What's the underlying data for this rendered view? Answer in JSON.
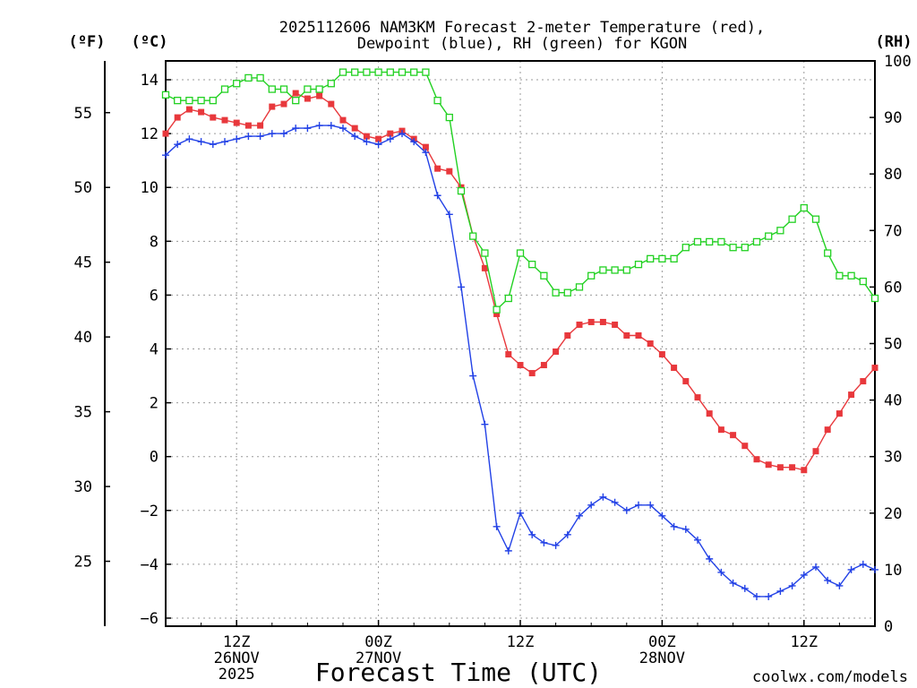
{
  "colors": {
    "temperature": "#e8383c",
    "dewpoint": "#2241e6",
    "rh": "#22d122",
    "credit": "#e8383c",
    "grid": "#9a9a9a"
  },
  "chart_data": {
    "type": "line",
    "title_line1": "2025112606 NAM3KM Forecast 2-meter Temperature (red),",
    "title_line2": "Dewpoint (blue), RH (green) for KGON",
    "xlabel": "Forecast Time (UTC)",
    "credit": "coolwx.com/models",
    "unit_f": "(ºF)",
    "unit_c": "(ºC)",
    "unit_rh": "(RH)",
    "x_hours_range": [
      0,
      60
    ],
    "ylim_c": [
      -6.3,
      14.7
    ],
    "ylim_rh": [
      0,
      100
    ],
    "x_ticks": [
      {
        "hour": 6,
        "lines": [
          "12Z",
          "26NOV",
          "2025"
        ]
      },
      {
        "hour": 18,
        "lines": [
          "00Z",
          "27NOV"
        ]
      },
      {
        "hour": 30,
        "lines": [
          "12Z"
        ]
      },
      {
        "hour": 42,
        "lines": [
          "00Z",
          "28NOV"
        ]
      },
      {
        "hour": 54,
        "lines": [
          "12Z"
        ]
      }
    ],
    "c_ticks": [
      -6,
      -4,
      -2,
      0,
      2,
      4,
      6,
      8,
      10,
      12,
      14
    ],
    "f_ticks": [
      25,
      30,
      35,
      40,
      45,
      50,
      55
    ],
    "rh_ticks": [
      0,
      10,
      20,
      30,
      40,
      50,
      60,
      70,
      80,
      90,
      100
    ],
    "hours": [
      0,
      1,
      2,
      3,
      4,
      5,
      6,
      7,
      8,
      9,
      10,
      11,
      12,
      13,
      14,
      15,
      16,
      17,
      18,
      19,
      20,
      21,
      22,
      23,
      24,
      25,
      26,
      27,
      28,
      29,
      30,
      31,
      32,
      33,
      34,
      35,
      36,
      37,
      38,
      39,
      40,
      41,
      42,
      43,
      44,
      45,
      46,
      47,
      48,
      49,
      50,
      51,
      52,
      53,
      54,
      55,
      56,
      57,
      58,
      59,
      60
    ],
    "series": [
      {
        "name": "Temperature",
        "unit": "C",
        "color_key": "temperature",
        "marker": "filled-square",
        "values": [
          12.0,
          12.6,
          12.9,
          12.8,
          12.6,
          12.5,
          12.4,
          12.3,
          12.3,
          13.0,
          13.1,
          13.5,
          13.3,
          13.4,
          13.1,
          12.5,
          12.2,
          11.9,
          11.8,
          12.0,
          12.1,
          11.8,
          11.5,
          10.7,
          10.6,
          10.0,
          8.2,
          7.0,
          5.3,
          3.8,
          3.4,
          3.1,
          3.4,
          3.9,
          4.5,
          4.9,
          5.0,
          5.0,
          4.9,
          4.5,
          4.5,
          4.2,
          3.8,
          3.3,
          2.8,
          2.2,
          1.6,
          1.0,
          0.8,
          0.4,
          -0.1,
          -0.3,
          -0.4,
          -0.4,
          -0.5,
          0.2,
          1.0,
          1.6,
          2.3,
          2.8,
          3.3
        ]
      },
      {
        "name": "Dewpoint",
        "unit": "C",
        "color_key": "dewpoint",
        "marker": "plus",
        "values": [
          11.2,
          11.6,
          11.8,
          11.7,
          11.6,
          11.7,
          11.8,
          11.9,
          11.9,
          12.0,
          12.0,
          12.2,
          12.2,
          12.3,
          12.3,
          12.2,
          11.9,
          11.7,
          11.6,
          11.8,
          12.0,
          11.7,
          11.3,
          9.7,
          9.0,
          6.3,
          3.0,
          1.2,
          -2.6,
          -3.5,
          -2.1,
          -2.9,
          -3.2,
          -3.3,
          -2.9,
          -2.2,
          -1.8,
          -1.5,
          -1.7,
          -2.0,
          -1.8,
          -1.8,
          -2.2,
          -2.6,
          -2.7,
          -3.1,
          -3.8,
          -4.3,
          -4.7,
          -4.9,
          -5.2,
          -5.2,
          -5.0,
          -4.8,
          -4.4,
          -4.1,
          -4.6,
          -4.8,
          -4.2,
          -4.0,
          -4.2
        ]
      },
      {
        "name": "RH",
        "unit": "%",
        "color_key": "rh",
        "marker": "open-square",
        "values": [
          94,
          93,
          93,
          93,
          93,
          95,
          96,
          97,
          97,
          95,
          95,
          93,
          95,
          95,
          96,
          98,
          98,
          98,
          98,
          98,
          98,
          98,
          98,
          93,
          90,
          77,
          69,
          66,
          56,
          58,
          66,
          64,
          62,
          59,
          59,
          60,
          62,
          63,
          63,
          63,
          64,
          65,
          65,
          65,
          67,
          68,
          68,
          68,
          67,
          67,
          68,
          69,
          70,
          72,
          74,
          72,
          66,
          62,
          62,
          61,
          58
        ]
      }
    ]
  }
}
